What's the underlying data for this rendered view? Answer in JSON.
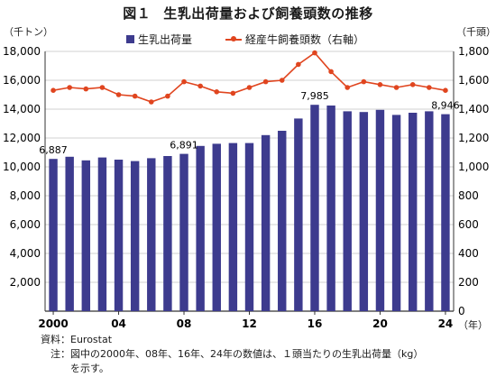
{
  "figure": {
    "number": "図１",
    "title": "生乳出荷量および飼養頭数の推移",
    "left_unit": "（千トン）",
    "right_unit": "（千頭）",
    "x_unit": "（年）",
    "notes": {
      "source_label": "資料：",
      "source": "Eurostat",
      "note_label": "注：",
      "note_line1": "図中の2000年、08年、16年、24年の数値は、１頭当たりの生乳出荷量（kg）",
      "note_line2": "を示す。"
    }
  },
  "colors": {
    "bar": "#3d3b8e",
    "line": "#e0451f",
    "grid": "#d0d0d0"
  },
  "chart_data": {
    "type": "bar",
    "x": [
      2000,
      2001,
      2002,
      2003,
      2004,
      2005,
      2006,
      2007,
      2008,
      2009,
      2010,
      2011,
      2012,
      2013,
      2014,
      2015,
      2016,
      2017,
      2018,
      2019,
      2020,
      2021,
      2022,
      2023,
      2024
    ],
    "x_tick_labels": [
      {
        "x": 2000,
        "label": "2000"
      },
      {
        "x": 2004,
        "label": "04"
      },
      {
        "x": 2008,
        "label": "08"
      },
      {
        "x": 2012,
        "label": "12"
      },
      {
        "x": 2016,
        "label": "16"
      },
      {
        "x": 2020,
        "label": "20"
      },
      {
        "x": 2024,
        "label": "24"
      }
    ],
    "series": [
      {
        "name": "生乳出荷量",
        "type": "bar",
        "axis": "left",
        "values": [
          10550,
          10700,
          10450,
          10650,
          10500,
          10400,
          10600,
          10750,
          10900,
          11450,
          11600,
          11650,
          11650,
          12200,
          12500,
          13350,
          14300,
          14250,
          13850,
          13800,
          13950,
          13600,
          13750,
          13850,
          13650
        ]
      },
      {
        "name": "経産牛飼養頭数（右軸）",
        "type": "line",
        "axis": "right",
        "values": [
          1530,
          1550,
          1540,
          1550,
          1500,
          1490,
          1450,
          1490,
          1590,
          1560,
          1520,
          1510,
          1550,
          1590,
          1600,
          1710,
          1790,
          1660,
          1550,
          1590,
          1570,
          1550,
          1570,
          1550,
          1530
        ]
      }
    ],
    "data_labels": [
      {
        "x": 2000,
        "text": "6,887"
      },
      {
        "x": 2008,
        "text": "6,891"
      },
      {
        "x": 2016,
        "text": "7,985"
      },
      {
        "x": 2024,
        "text": "8,946"
      }
    ],
    "y_left": {
      "min": 0,
      "max": 18000,
      "ticks": [
        0,
        2000,
        4000,
        6000,
        8000,
        10000,
        12000,
        14000,
        16000,
        18000
      ],
      "tick_labels": [
        "",
        "2,000",
        "4,000",
        "6,000",
        "8,000",
        "10,000",
        "12,000",
        "14,000",
        "16,000",
        "18,000"
      ]
    },
    "y_right": {
      "min": 0,
      "max": 1800,
      "ticks": [
        0,
        200,
        400,
        600,
        800,
        1000,
        1200,
        1400,
        1600,
        1800
      ],
      "tick_labels": [
        "0",
        "200",
        "400",
        "600",
        "800",
        "1,000",
        "1,200",
        "1,400",
        "1,600",
        "1,800"
      ]
    },
    "grid": true,
    "legend_position": "top"
  }
}
